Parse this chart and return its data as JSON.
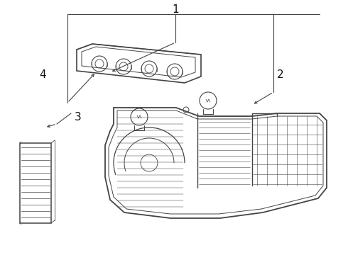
{
  "bg_color": "#ffffff",
  "line_color": "#444444",
  "line_width": 1.0,
  "label_color": "#111111",
  "label_fontsize": 10,
  "fig_width": 4.9,
  "fig_height": 3.6,
  "dpi": 100
}
